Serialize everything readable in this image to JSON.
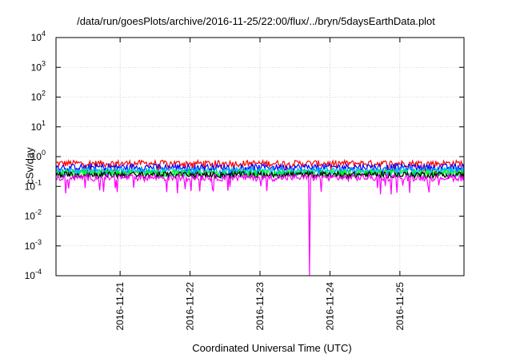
{
  "chart_data": {
    "type": "line",
    "title": "/data/run/goesPlots/archive/2016-11-25/22:00/flux/../bryn/5daysEarthData.plot",
    "xlabel": "Coordinated Universal Time (UTC)",
    "ylabel": "cSv/day",
    "y_scale": "log",
    "ylim": [
      0.0001,
      10000
    ],
    "y_ticks": [
      {
        "base": "10",
        "exp": "-4"
      },
      {
        "base": "10",
        "exp": "-3"
      },
      {
        "base": "10",
        "exp": "-2"
      },
      {
        "base": "10",
        "exp": "-1"
      },
      {
        "base": "10",
        "exp": "0"
      },
      {
        "base": "10",
        "exp": "1"
      },
      {
        "base": "10",
        "exp": "2"
      },
      {
        "base": "10",
        "exp": "3"
      },
      {
        "base": "10",
        "exp": "4"
      }
    ],
    "xlim": [
      "2016-11-20T02:00",
      "2016-11-25T22:00"
    ],
    "x_ticks": [
      "2016-11-21",
      "2016-11-22",
      "2016-11-23",
      "2016-11-24",
      "2016-11-25"
    ],
    "grid": true,
    "series": [
      {
        "color": "#ff0000",
        "level": 0.6,
        "min": 0.3
      },
      {
        "color": "#0000ff",
        "level": 0.45,
        "min": 0.2
      },
      {
        "color": "#00aaff",
        "level": 0.35,
        "min": 0.18
      },
      {
        "color": "#00c8c8",
        "level": 0.3,
        "min": 0.2
      },
      {
        "color": "#00ff00",
        "level": 0.28,
        "min": 0.22
      },
      {
        "color": "#000000",
        "level": 0.25,
        "min": 0.2
      },
      {
        "color": "#ff00ff",
        "level": 0.2,
        "min": 0.05
      }
    ],
    "dropouts": [
      {
        "series_color": "#ff00ff",
        "time": "2016-11-23T17:00",
        "value": 0.0001
      }
    ]
  }
}
